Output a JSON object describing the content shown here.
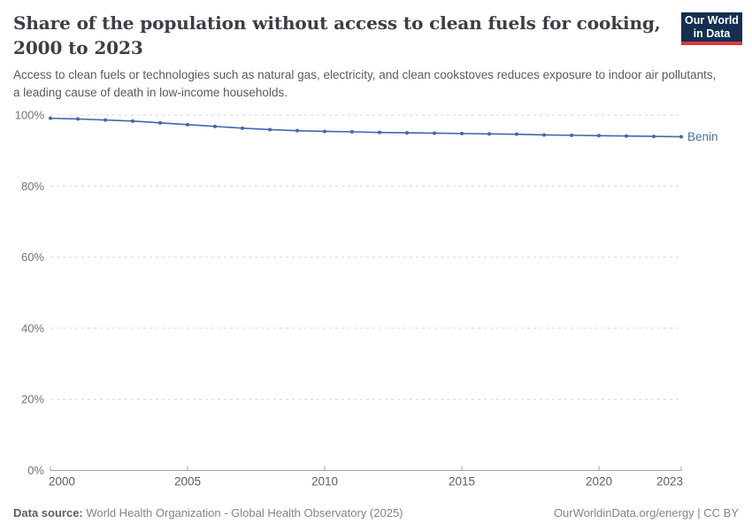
{
  "header": {
    "title_line1": "Share of the population without access to clean fuels for cooking,",
    "title_line2": "2000 to 2023",
    "subtitle": "Access to clean fuels or technologies such as natural gas, electricity, and clean cookstoves reduces exposure to indoor air pollutants, a leading cause of death in low-income households.",
    "logo": {
      "line1": "Our World",
      "line2": "in Data",
      "bg_color": "#152e51",
      "accent_color": "#dc3a41"
    }
  },
  "chart_data": {
    "type": "line",
    "title": "Share of the population without access to clean fuels for cooking, 2000 to 2023",
    "x": [
      2000,
      2001,
      2002,
      2003,
      2004,
      2005,
      2006,
      2007,
      2008,
      2009,
      2010,
      2011,
      2012,
      2013,
      2014,
      2015,
      2016,
      2017,
      2018,
      2019,
      2020,
      2021,
      2022,
      2023
    ],
    "series": [
      {
        "name": "Benin",
        "color": "#4266ac",
        "label_color": "#4a6fae",
        "values": [
          99.1,
          98.9,
          98.6,
          98.3,
          97.8,
          97.3,
          96.8,
          96.3,
          95.9,
          95.6,
          95.4,
          95.3,
          95.1,
          95.0,
          94.9,
          94.8,
          94.7,
          94.6,
          94.4,
          94.3,
          94.2,
          94.1,
          94.0,
          93.9
        ]
      }
    ],
    "xlabel": "",
    "ylabel": "",
    "ylim": [
      0,
      100
    ],
    "yticks": [
      0,
      20,
      40,
      60,
      80,
      100
    ],
    "ytick_suffix": "%",
    "xticks": [
      2000,
      2005,
      2010,
      2015,
      2020,
      2023
    ],
    "grid": "horizontal-dashed",
    "legend_position": "line-end-label",
    "grid_color": "#d6d6d6",
    "axis_color": "#a0a0a0",
    "ytick_label_color": "#737373",
    "xtick_label_color": "#5e5e5e"
  },
  "footer": {
    "source_label": "Data source:",
    "source_text": " World Health Organization - Global Health Observatory (2025)",
    "attribution": "OurWorldinData.org/energy | CC BY"
  }
}
